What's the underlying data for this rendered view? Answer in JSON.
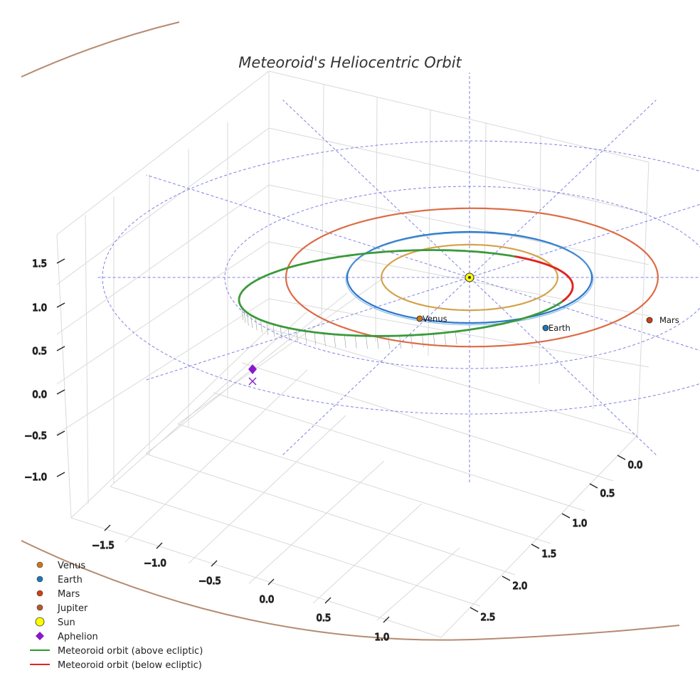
{
  "chart_data": {
    "type": "3d-orbit",
    "title": "Meteoroid's Heliocentric Orbit",
    "x_ticks": [
      "−1.5",
      "−1.0",
      "−0.5",
      "0.0",
      "0.5",
      "1.0"
    ],
    "y_ticks": [
      "0.0",
      "0.5",
      "1.0",
      "1.5",
      "2.0",
      "2.5"
    ],
    "z_ticks": [
      "1.5",
      "1.0",
      "0.5",
      "0.0",
      "−0.5",
      "−1.0"
    ],
    "planets": [
      {
        "name": "Venus",
        "a_au": 0.72,
        "label": "Venus",
        "color": "#d4a24a",
        "marker": "#c9781a"
      },
      {
        "name": "Earth",
        "a_au": 1.0,
        "label": "Earth",
        "color": "#2a76c9",
        "marker": "#1f77b4"
      },
      {
        "name": "Mars",
        "a_au": 1.52,
        "label": "Mars",
        "color": "#dd6b45",
        "marker": "#cc4214"
      },
      {
        "name": "Jupiter",
        "a_au": 5.2,
        "label": "",
        "color": "#b58a70",
        "marker": "#b05c2a"
      }
    ],
    "sun": {
      "name": "Sun",
      "color": "#ffff00"
    },
    "meteoroid": {
      "perihelion_au": 0.98,
      "aphelion_au": 1.85,
      "above_color": "#3a9a3a",
      "below_color": "#e82020"
    },
    "aphelion_marker_color": "#8a18c8",
    "ecliptic_grid_color": "#6a6ae0",
    "legend": [
      {
        "label": "Venus",
        "kind": "dot",
        "color": "#c9781a"
      },
      {
        "label": "Earth",
        "kind": "dot",
        "color": "#1f77b4"
      },
      {
        "label": "Mars",
        "kind": "dot",
        "color": "#cc4214"
      },
      {
        "label": "Jupiter",
        "kind": "dot",
        "color": "#b05c2a"
      },
      {
        "label": "Sun",
        "kind": "sun",
        "color": "#ffff00"
      },
      {
        "label": "Aphelion",
        "kind": "diamond",
        "color": "#8a18c8"
      },
      {
        "label": "Meteoroid orbit (above ecliptic)",
        "kind": "line",
        "color": "#2a9a2a"
      },
      {
        "label": "Meteoroid orbit (below ecliptic)",
        "kind": "line",
        "color": "#e82020"
      }
    ]
  }
}
